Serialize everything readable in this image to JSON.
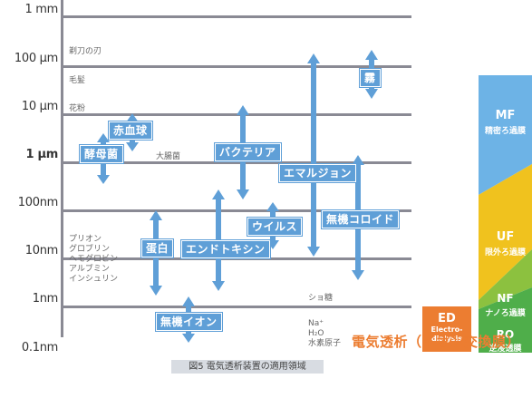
{
  "y_axis_labels": [
    "1 mm",
    "100 μm",
    "10 μm",
    "1 μm",
    "100nm",
    "10nm",
    "1nm",
    "0.1nm"
  ],
  "examples": {
    "sword": "剃刀の刃",
    "hair": "毛髪",
    "pollen": "花粉",
    "coliform": "大腸菌",
    "proteins": [
      "プリオン",
      "グロブリン",
      "ヘモグロビン",
      "アルブミン",
      "インシュリン"
    ],
    "sugar": "ショ糖",
    "ions": [
      "Na⁺",
      "H₂O",
      "水素原子"
    ]
  },
  "substances": {
    "red_blood_cell": "赤血球",
    "yeast": "酵母菌",
    "bacteria": "バクテリア",
    "emulsion": "エマルジョン",
    "fog": "霧",
    "virus": "ウイルス",
    "inorganic_colloid": "無機コロイド",
    "protein": "蛋白",
    "endotoxin": "エンドトキシン",
    "inorganic_ion": "無機イオン"
  },
  "membranes": {
    "mf_code": "MF",
    "mf_name": "精密ろ過膜",
    "uf_code": "UF",
    "uf_name": "限外ろ過膜",
    "nf_code": "NF",
    "nf_name": "ナノろ過膜",
    "ro_code": "RO",
    "ro_name": "逆浸透膜",
    "ed_code": "ED",
    "ed_name_1": "Electro-",
    "ed_name_2": "dialysis"
  },
  "bottom_label": "電気透析（イオン交換膜）",
  "caption": "図5 電気透析装置の適用領域",
  "colors": {
    "arrow": "#5f9fd7",
    "mf": "#6db3e6",
    "uf": "#f0c21e",
    "nf": "#8cc13f",
    "ro": "#4fae4a",
    "ed": "#ec7d31",
    "grid": "#8a8a94"
  }
}
